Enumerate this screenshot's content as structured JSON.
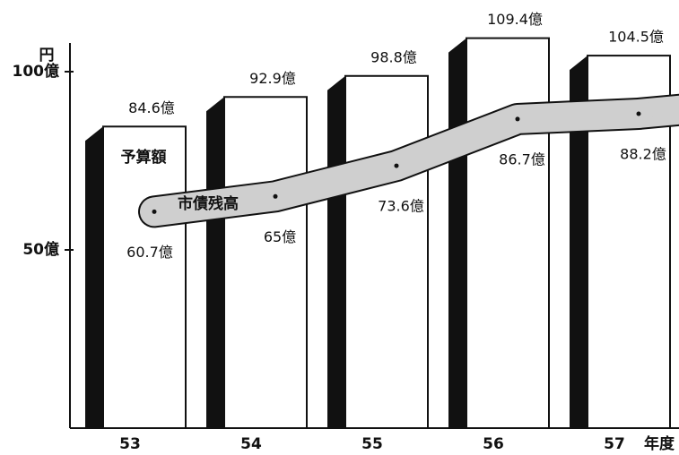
{
  "chart_data": {
    "type": "bar_line",
    "y_unit": "円",
    "x_label": "年度",
    "categories": [
      "53",
      "54",
      "55",
      "56",
      "57"
    ],
    "series": [
      {
        "name": "予算額",
        "type": "bar",
        "color": "#ffffff",
        "side_color": "#111111",
        "values": [
          84.6,
          92.9,
          98.8,
          109.4,
          104.5
        ],
        "value_labels": [
          "84.6億",
          "92.9億",
          "98.8億",
          "109.4億",
          "104.5億"
        ]
      },
      {
        "name": "市債残高",
        "type": "line",
        "color": "#cfcfcf",
        "values": [
          60.7,
          65,
          73.6,
          86.7,
          88.2
        ],
        "value_labels": [
          "60.7億",
          "65億",
          "73.6億",
          "86.7億",
          "88.2億"
        ]
      }
    ],
    "ylim": [
      0,
      100
    ],
    "yticks": [
      {
        "value": 50,
        "label": "50億"
      },
      {
        "value": 100,
        "label": "100億"
      }
    ]
  }
}
